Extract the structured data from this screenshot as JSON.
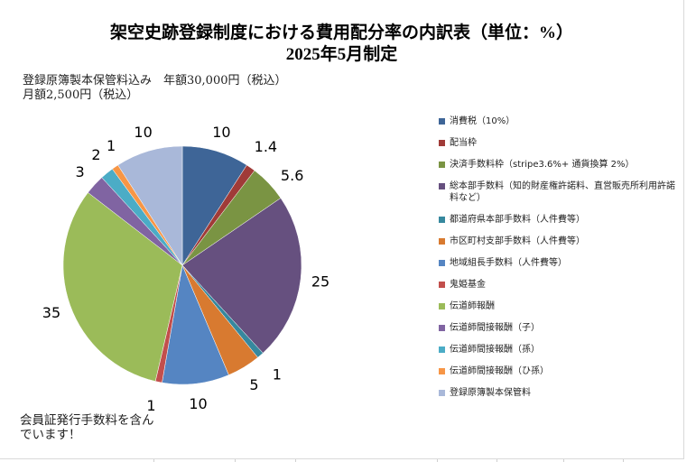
{
  "chart_data": {
    "type": "pie",
    "title": "架空史跡登録制度における費用配分率の内訳表（単位：%）",
    "subtitle": "2025年5月制定",
    "notes": [
      "登録原簿製本保管料込み　年額30,000円（税込）",
      "月額2,500円（税込）"
    ],
    "footnote": "会員証発行手数料を含んでいます！",
    "legend_position": "right",
    "slices": [
      {
        "name": "消費税（10%）",
        "value": 10,
        "label": "10",
        "color": "#3E6597"
      },
      {
        "name": "配当枠",
        "value": 1.4,
        "label": "1.4",
        "color": "#A03B38"
      },
      {
        "name": "決済手数料枠（stripe3.6%+ 通貨換算 2%）",
        "value": 5.6,
        "label": "5.6",
        "color": "#7A9443"
      },
      {
        "name": "総本部手数料（知的財産権許諾料、直営販売所利用許諾料など）",
        "value": 25,
        "label": "25",
        "color": "#66507F"
      },
      {
        "name": "都道府県本部手数料（人件費等）",
        "value": 1,
        "label": "1",
        "color": "#36889E"
      },
      {
        "name": "市区町村支部手数料（人件費等）",
        "value": 5,
        "label": "5",
        "color": "#D87A30"
      },
      {
        "name": "地域組長手数料（人件費等）",
        "value": 10,
        "label": "10",
        "color": "#5585C2"
      },
      {
        "name": "鬼姫基金",
        "value": 1,
        "label": "1",
        "color": "#C24F4C"
      },
      {
        "name": "伝道師報酬",
        "value": 35,
        "label": "35",
        "color": "#9BBB59"
      },
      {
        "name": "伝道師間接報酬（子）",
        "value": 3,
        "label": "3",
        "color": "#8064A2"
      },
      {
        "name": "伝道師間接報酬（孫）",
        "value": 2,
        "label": "2",
        "color": "#4BACC6"
      },
      {
        "name": "伝道師間接報酬（ひ孫）",
        "value": 1,
        "label": "1",
        "color": "#F79646"
      },
      {
        "name": "登録原簿製本保管料",
        "value": 10,
        "label": "10",
        "color": "#A9B8D9"
      }
    ]
  }
}
